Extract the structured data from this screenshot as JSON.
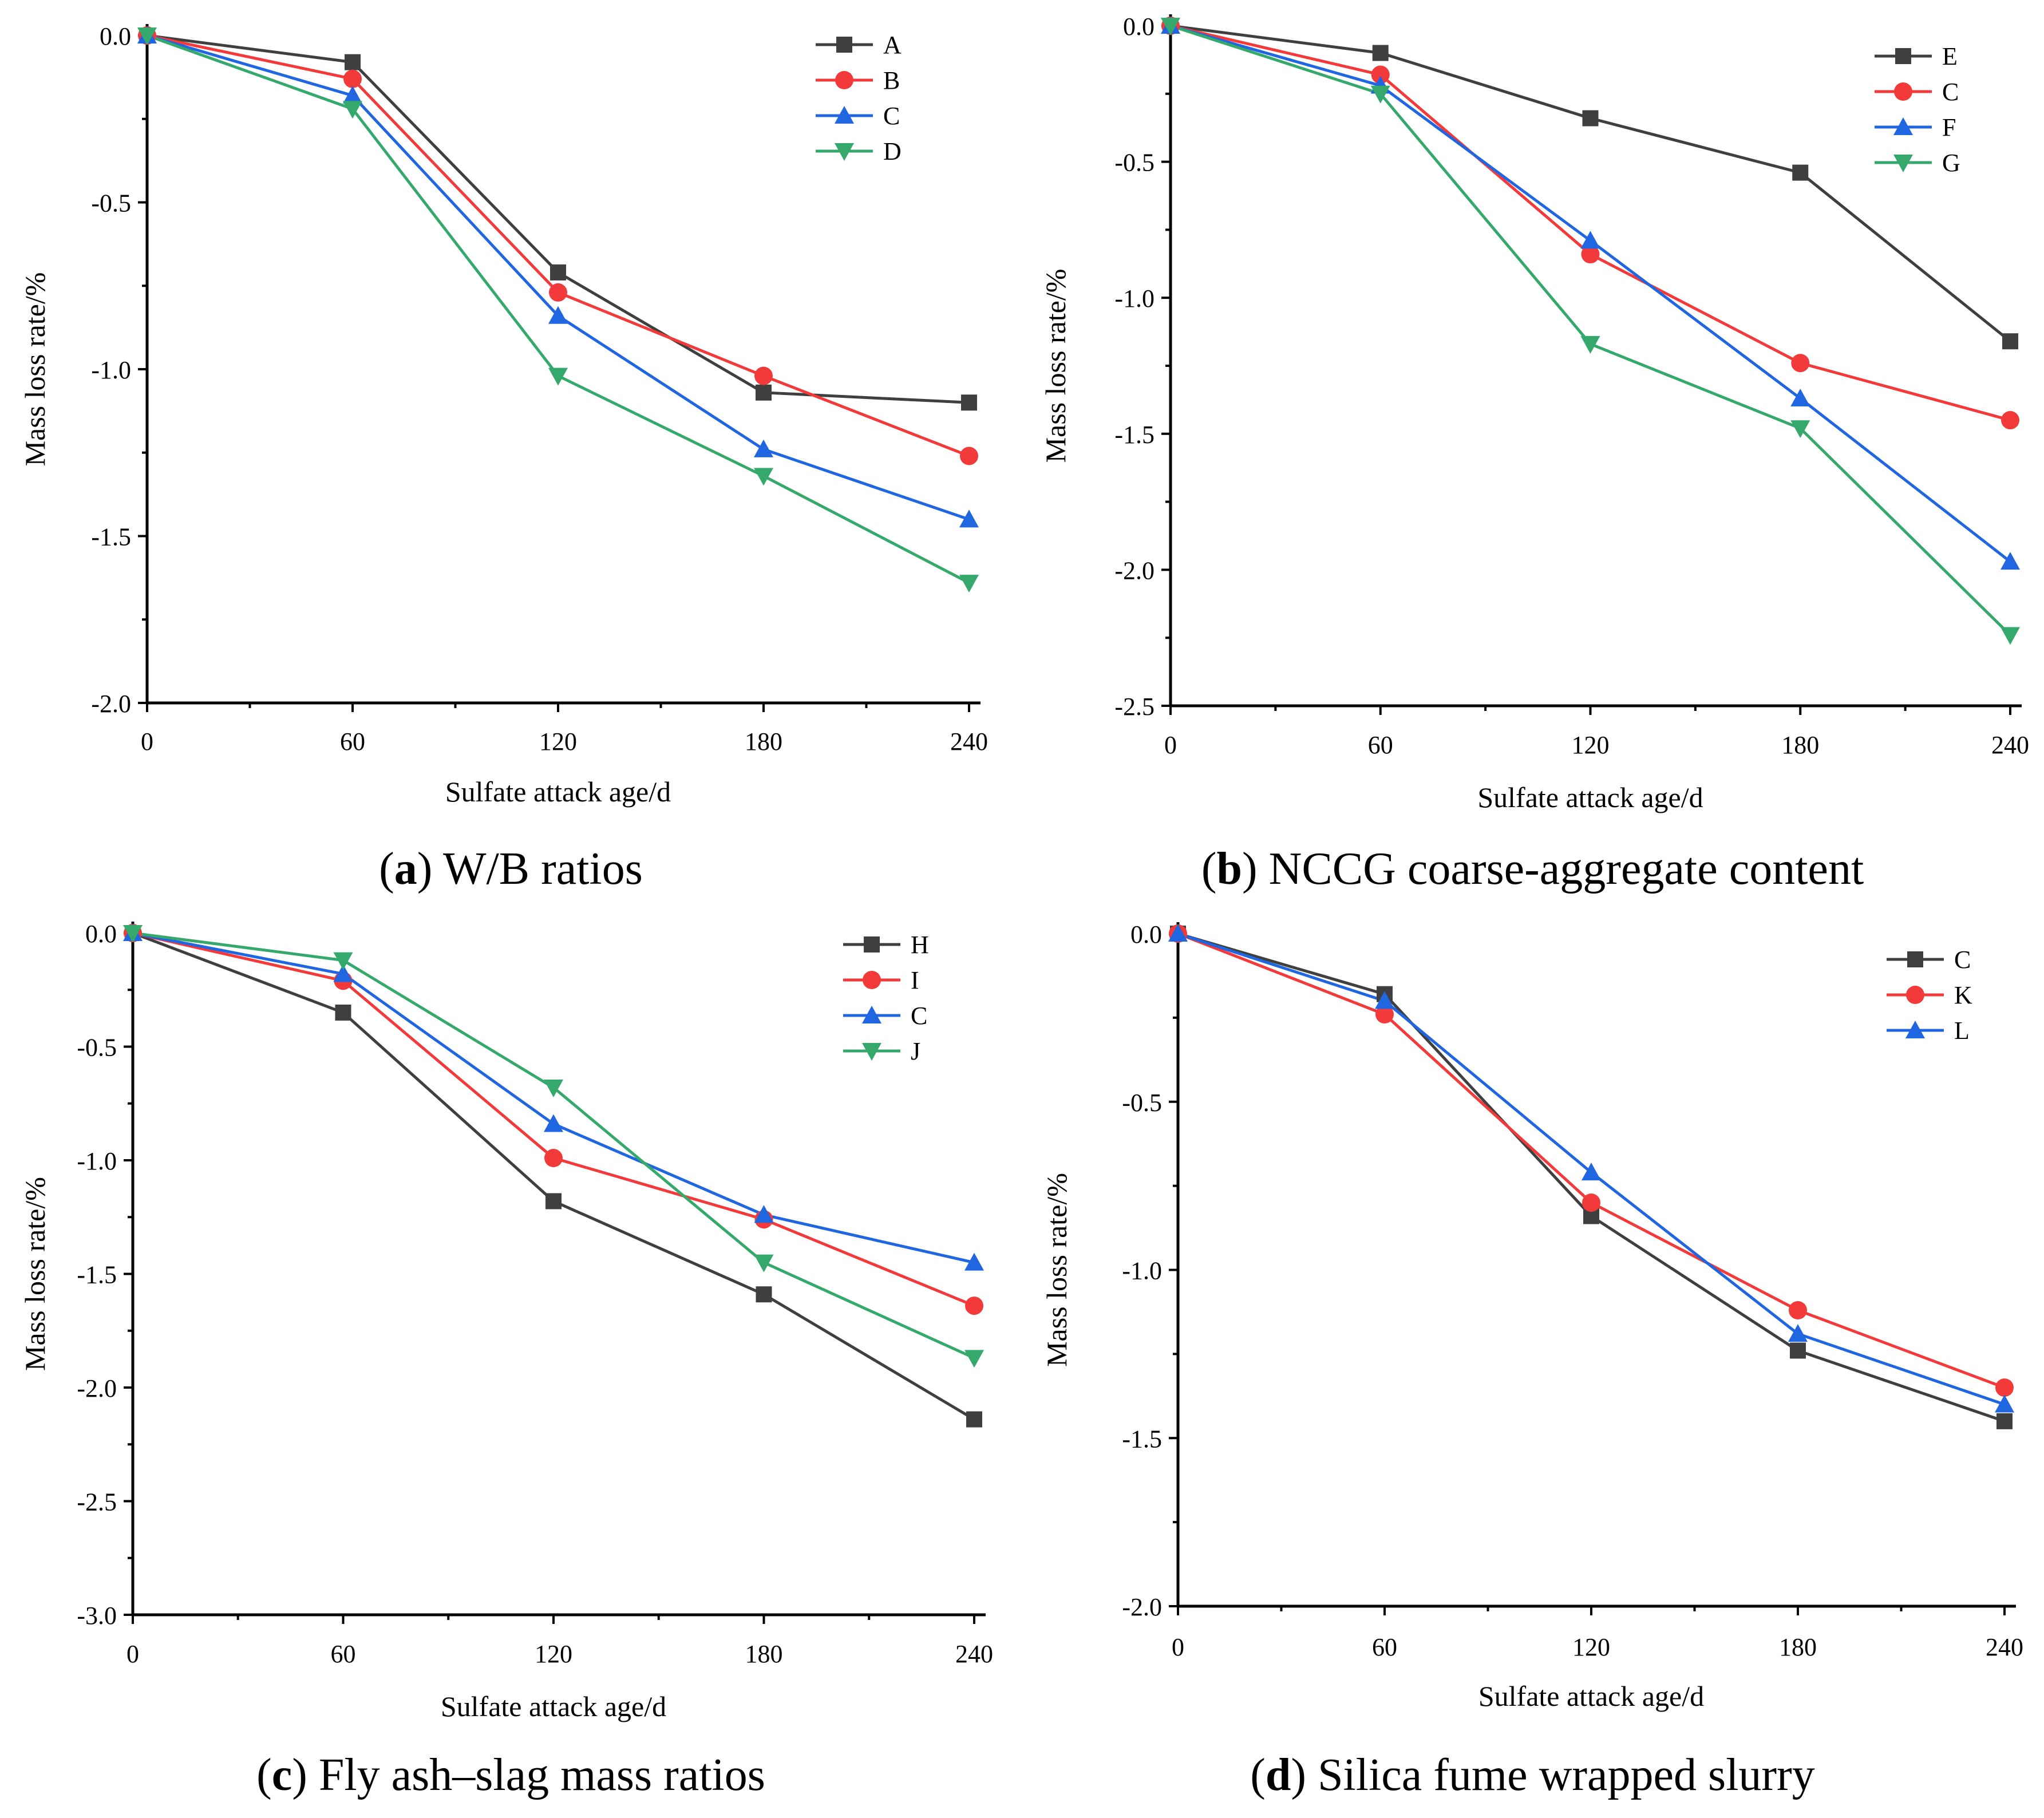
{
  "figure": {
    "panels": [
      {
        "letter": "a",
        "caption": "W/B ratios"
      },
      {
        "letter": "b",
        "caption": "NCCG coarse-aggregate content"
      },
      {
        "letter": "c",
        "caption": "Fly ash–slag mass ratios"
      },
      {
        "letter": "d",
        "caption": "Silica fume wrapped slurry"
      }
    ]
  },
  "colors": {
    "black": "#3f3f3f",
    "red": "#f23a3a",
    "blue": "#1f66e0",
    "green": "#35a86b"
  },
  "chart_data": [
    {
      "type": "line",
      "panel": "a",
      "title": "W/B ratios",
      "xlabel": "Sulfate attack age/d",
      "ylabel": "Mass loss rate/%",
      "x": [
        0,
        60,
        120,
        180,
        240
      ],
      "xticks": [
        "0",
        "60",
        "120",
        "180",
        "240"
      ],
      "xlim": [
        0,
        240
      ],
      "ylim": [
        -2.0,
        0.0
      ],
      "yticks": [
        "-2.0",
        "-1.5",
        "-1.0",
        "-0.5",
        "0.0"
      ],
      "ytick_values": [
        -2.0,
        -1.5,
        -1.0,
        -0.5,
        0.0
      ],
      "legend_position": "top-right",
      "series": [
        {
          "name": "A",
          "marker": "square",
          "color": "#3f3f3f",
          "values": [
            0,
            -0.08,
            -0.71,
            -1.07,
            -1.1
          ]
        },
        {
          "name": "B",
          "marker": "circle",
          "color": "#f23a3a",
          "values": [
            0,
            -0.13,
            -0.77,
            -1.02,
            -1.26
          ]
        },
        {
          "name": "C",
          "marker": "triangle-up",
          "color": "#1f66e0",
          "values": [
            0,
            -0.18,
            -0.84,
            -1.24,
            -1.45
          ]
        },
        {
          "name": "D",
          "marker": "triangle-down",
          "color": "#35a86b",
          "values": [
            0,
            -0.22,
            -1.02,
            -1.32,
            -1.64
          ]
        }
      ]
    },
    {
      "type": "line",
      "panel": "b",
      "title": "NCCG coarse-aggregate content",
      "xlabel": "Sulfate attack age/d",
      "ylabel": "Mass loss rate/%",
      "x": [
        0,
        60,
        120,
        180,
        240
      ],
      "xticks": [
        "0",
        "60",
        "120",
        "180",
        "240"
      ],
      "xlim": [
        0,
        240
      ],
      "ylim": [
        -2.5,
        0.0
      ],
      "yticks": [
        "-2.5",
        "-2.0",
        "-1.5",
        "-1.0",
        "-0.5",
        "0.0"
      ],
      "ytick_values": [
        -2.5,
        -2.0,
        -1.5,
        -1.0,
        -0.5,
        0.0
      ],
      "legend_position": "top-right",
      "series": [
        {
          "name": "E",
          "marker": "square",
          "color": "#3f3f3f",
          "values": [
            0,
            -0.1,
            -0.34,
            -0.54,
            -1.16
          ]
        },
        {
          "name": "C",
          "marker": "circle",
          "color": "#f23a3a",
          "values": [
            0,
            -0.18,
            -0.84,
            -1.24,
            -1.45
          ]
        },
        {
          "name": "F",
          "marker": "triangle-up",
          "color": "#1f66e0",
          "values": [
            0,
            -0.22,
            -0.79,
            -1.37,
            -1.97
          ]
        },
        {
          "name": "G",
          "marker": "triangle-down",
          "color": "#35a86b",
          "values": [
            0,
            -0.25,
            -1.17,
            -1.48,
            -2.24
          ]
        }
      ]
    },
    {
      "type": "line",
      "panel": "c",
      "title": "Fly ash–slag mass ratios",
      "xlabel": "Sulfate attack age/d",
      "ylabel": "Mass loss rate/%",
      "x": [
        0,
        60,
        120,
        180,
        240
      ],
      "xticks": [
        "0",
        "60",
        "120",
        "180",
        "240"
      ],
      "xlim": [
        0,
        240
      ],
      "ylim": [
        -3.0,
        0.0
      ],
      "yticks": [
        "-3.0",
        "-2.5",
        "-2.0",
        "-1.5",
        "-1.0",
        "-0.5",
        "0.0"
      ],
      "ytick_values": [
        -3.0,
        -2.5,
        -2.0,
        -1.5,
        -1.0,
        -0.5,
        0.0
      ],
      "legend_position": "top-right",
      "series": [
        {
          "name": "H",
          "marker": "square",
          "color": "#3f3f3f",
          "values": [
            0,
            -0.35,
            -1.18,
            -1.59,
            -2.14
          ]
        },
        {
          "name": "I",
          "marker": "circle",
          "color": "#f23a3a",
          "values": [
            0,
            -0.21,
            -0.99,
            -1.26,
            -1.64
          ]
        },
        {
          "name": "C",
          "marker": "triangle-up",
          "color": "#1f66e0",
          "values": [
            0,
            -0.18,
            -0.84,
            -1.24,
            -1.45
          ]
        },
        {
          "name": "J",
          "marker": "triangle-down",
          "color": "#35a86b",
          "values": [
            0,
            -0.12,
            -0.68,
            -1.45,
            -1.87
          ]
        }
      ]
    },
    {
      "type": "line",
      "panel": "d",
      "title": "Silica fume wrapped slurry",
      "xlabel": "Sulfate attack age/d",
      "ylabel": "Mass loss rate/%",
      "x": [
        0,
        60,
        120,
        180,
        240
      ],
      "xticks": [
        "0",
        "60",
        "120",
        "180",
        "240"
      ],
      "xlim": [
        0,
        240
      ],
      "ylim": [
        -2.0,
        0.0
      ],
      "yticks": [
        "-2.0",
        "-1.5",
        "-1.0",
        "-0.5",
        "0.0"
      ],
      "ytick_values": [
        -2.0,
        -1.5,
        -1.0,
        -0.5,
        0.0
      ],
      "legend_position": "top-right",
      "series": [
        {
          "name": "C",
          "marker": "square",
          "color": "#3f3f3f",
          "values": [
            0,
            -0.18,
            -0.84,
            -1.24,
            -1.45
          ]
        },
        {
          "name": "K",
          "marker": "circle",
          "color": "#f23a3a",
          "values": [
            0,
            -0.24,
            -0.8,
            -1.12,
            -1.35
          ]
        },
        {
          "name": "L",
          "marker": "triangle-up",
          "color": "#1f66e0",
          "values": [
            0,
            -0.2,
            -0.71,
            -1.19,
            -1.4
          ]
        }
      ]
    }
  ]
}
